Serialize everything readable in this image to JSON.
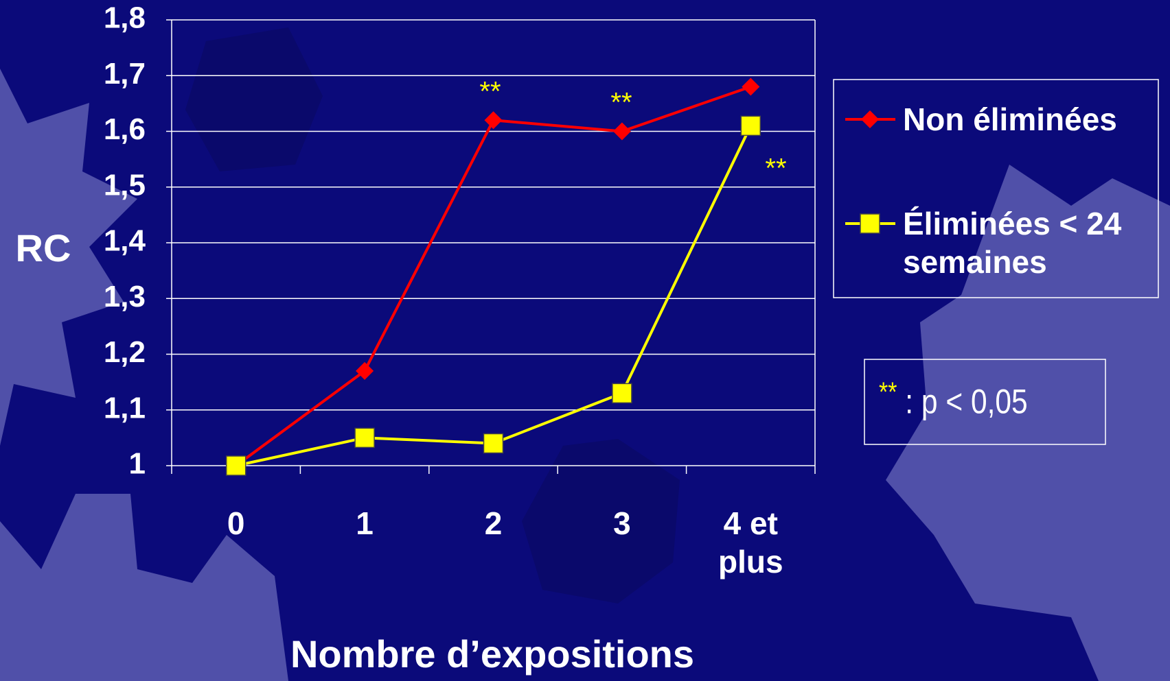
{
  "chart_data": {
    "type": "line",
    "y_label": "RC",
    "x_label": "Nombre d’expositions",
    "categories": [
      "0",
      "1",
      "2",
      "3",
      "4 et plus"
    ],
    "series": [
      {
        "name": "Non éliminées",
        "color": "#ff0000",
        "marker": "diamond",
        "values": [
          1,
          1.17,
          1.62,
          1.6,
          1.68
        ]
      },
      {
        "name": "Éliminées < 24 semaines",
        "color": "#ffff00",
        "marker": "square",
        "values": [
          1,
          1.05,
          1.04,
          1.13,
          1.61
        ]
      }
    ],
    "ylim": [
      1,
      1.8
    ],
    "yticks": [
      1,
      {
        "value": 1.1,
        "label": "1,1"
      },
      {
        "value": 1.2,
        "label": "1,2"
      },
      {
        "value": 1.3,
        "label": "1,3"
      },
      {
        "value": 1.4,
        "label": "1,4"
      },
      {
        "value": 1.5,
        "label": "1,5"
      },
      {
        "value": 1.6,
        "label": "1,6"
      },
      {
        "value": 1.7,
        "label": "1,7"
      },
      {
        "value": 1.8,
        "label": "1,8"
      }
    ],
    "grid": true,
    "annotations": [
      "**",
      "**",
      "**"
    ],
    "note": {
      "symbol": "**",
      "text": ": p < 0,05"
    }
  }
}
